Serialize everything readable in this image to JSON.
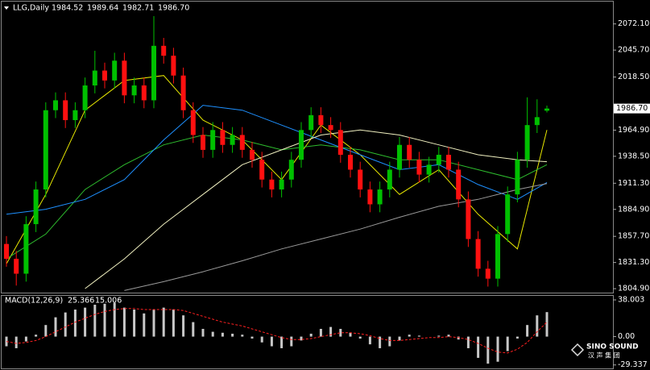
{
  "chart_data": [
    {
      "type": "candlestick",
      "symbol": "LLG,Daily",
      "ohlc_labels": [
        "1984.52",
        "1989.64",
        "1982.71",
        "1986.70"
      ],
      "open": [
        1850,
        1835,
        1820,
        1870,
        1905,
        1985,
        1995,
        1975,
        1985,
        2010,
        2025,
        2015,
        2035,
        2000,
        2010,
        1995,
        2050,
        2040,
        2020,
        1985,
        1960,
        1945,
        1965,
        1950,
        1960,
        1945,
        1935,
        1915,
        1905,
        1915,
        1935,
        1965,
        1980,
        1970,
        1965,
        1940,
        1925,
        1905,
        1890,
        1905,
        1925,
        1950,
        1935,
        1920,
        1930,
        1940,
        1925,
        1895,
        1855,
        1825,
        1815,
        1860,
        1900,
        1935,
        1970,
        1984.52
      ],
      "high": [
        1858,
        1843,
        1878,
        1913,
        1993,
        2003,
        2003,
        1993,
        2018,
        2045,
        2033,
        2043,
        2043,
        2018,
        2018,
        2080,
        2058,
        2048,
        2028,
        1993,
        1968,
        1973,
        1973,
        1968,
        1968,
        1953,
        1943,
        1923,
        1923,
        1943,
        1973,
        1988,
        1988,
        1978,
        1973,
        1948,
        1933,
        1913,
        1913,
        1933,
        1958,
        1958,
        1943,
        1938,
        1948,
        1948,
        1933,
        1903,
        1863,
        1833,
        1868,
        1908,
        1943,
        1998,
        1996,
        1989.64
      ],
      "low": [
        1827,
        1808,
        1812,
        1862,
        1897,
        1977,
        1967,
        1967,
        1977,
        2002,
        2007,
        2007,
        1992,
        1992,
        1987,
        1987,
        2032,
        2012,
        1977,
        1952,
        1937,
        1937,
        1942,
        1942,
        1937,
        1927,
        1907,
        1897,
        1897,
        1907,
        1927,
        1957,
        1962,
        1957,
        1932,
        1917,
        1897,
        1882,
        1882,
        1897,
        1917,
        1927,
        1912,
        1912,
        1922,
        1917,
        1887,
        1847,
        1817,
        1807,
        1807,
        1852,
        1892,
        1927,
        1962,
        1982.71
      ],
      "close": [
        1835,
        1820,
        1870,
        1905,
        1985,
        1995,
        1975,
        1985,
        2010,
        2025,
        2015,
        2035,
        2000,
        2010,
        1995,
        2050,
        2040,
        2020,
        1985,
        1960,
        1945,
        1965,
        1950,
        1960,
        1945,
        1935,
        1915,
        1905,
        1915,
        1935,
        1965,
        1980,
        1970,
        1965,
        1940,
        1925,
        1905,
        1890,
        1905,
        1925,
        1950,
        1935,
        1920,
        1930,
        1940,
        1925,
        1895,
        1855,
        1825,
        1815,
        1860,
        1900,
        1935,
        1970,
        1978,
        1986.7
      ],
      "up_color": "#00c000",
      "down_color": "#ff1010",
      "series": [
        {
          "color": "#e8e800",
          "x": [
            0,
            4,
            8,
            12,
            16,
            20,
            24,
            28,
            32,
            36,
            40,
            44,
            48,
            52,
            55
          ],
          "values": [
            1830,
            1900,
            1985,
            2015,
            2020,
            1975,
            1955,
            1915,
            1970,
            1940,
            1900,
            1925,
            1880,
            1845,
            1965
          ]
        },
        {
          "color": "#2ebd2e",
          "x": [
            0,
            4,
            8,
            12,
            16,
            20,
            24,
            28,
            32,
            36,
            40,
            44,
            48,
            52,
            55
          ],
          "values": [
            1835,
            1860,
            1905,
            1930,
            1950,
            1960,
            1955,
            1945,
            1950,
            1945,
            1935,
            1935,
            1925,
            1915,
            1930
          ]
        },
        {
          "color": "#1e90ff",
          "x": [
            0,
            4,
            8,
            12,
            16,
            20,
            24,
            28,
            32,
            36,
            40,
            44,
            48,
            52,
            55
          ],
          "values": [
            1880,
            1885,
            1895,
            1915,
            1955,
            1990,
            1985,
            1970,
            1955,
            1940,
            1925,
            1930,
            1910,
            1895,
            1912
          ]
        },
        {
          "color": "#f0f0c0",
          "x": [
            0,
            4,
            8,
            12,
            16,
            20,
            24,
            28,
            32,
            36,
            40,
            44,
            48,
            52,
            55
          ],
          "values": [
            null,
            null,
            1805,
            1835,
            1870,
            1900,
            1930,
            1945,
            1960,
            1965,
            1960,
            1950,
            1940,
            1935,
            1933
          ]
        },
        {
          "color": "#9a9a9a",
          "x": [
            0,
            4,
            8,
            12,
            16,
            20,
            24,
            28,
            32,
            36,
            40,
            44,
            48,
            52,
            55
          ],
          "values": [
            null,
            null,
            null,
            1803,
            1812,
            1822,
            1833,
            1845,
            1855,
            1865,
            1877,
            1888,
            1895,
            1905,
            1911
          ]
        }
      ],
      "ylim": [
        1800.9,
        2093.8
      ],
      "yticks": [
        {
          "value": 2072.1,
          "label": "2072.10"
        },
        {
          "value": 2045.7,
          "label": "2045.70"
        },
        {
          "value": 2018.5,
          "label": "2018.50"
        },
        {
          "value": 1964.9,
          "label": "1964.90"
        },
        {
          "value": 1938.5,
          "label": "1938.50"
        },
        {
          "value": 1911.3,
          "label": "1911.30"
        },
        {
          "value": 1884.9,
          "label": "1884.90"
        },
        {
          "value": 1857.7,
          "label": "1857.70"
        },
        {
          "value": 1831.3,
          "label": "1831.30"
        },
        {
          "value": 1804.9,
          "label": "1804.90"
        }
      ]
    },
    {
      "type": "macd",
      "title": "MACD(12,26,9)",
      "histogram": [
        -10,
        -12,
        -5,
        2,
        12,
        20,
        25,
        28,
        30,
        33,
        34,
        35,
        30,
        28,
        24,
        28,
        30,
        28,
        22,
        15,
        8,
        5,
        4,
        3,
        2,
        -2,
        -6,
        -10,
        -12,
        -10,
        -4,
        3,
        8,
        10,
        8,
        4,
        -2,
        -8,
        -12,
        -10,
        -4,
        2,
        1,
        0,
        1,
        2,
        -3,
        -12,
        -22,
        -28,
        -26,
        -15,
        -2,
        12,
        22,
        25.366
      ],
      "signal": [
        -5,
        -7,
        -6,
        -4,
        0,
        5,
        10,
        15,
        19,
        23,
        26,
        28,
        29,
        29,
        28,
        28,
        28,
        28,
        27,
        24,
        21,
        18,
        15,
        13,
        11,
        8,
        5,
        2,
        -1,
        -3,
        -3,
        -2,
        0,
        2,
        4,
        4,
        3,
        1,
        -2,
        -4,
        -4,
        -3,
        -2,
        -1,
        -1,
        0,
        -1,
        -3,
        -7,
        -12,
        -16,
        -17,
        -13,
        -6,
        5,
        15.006
      ],
      "histogram_color": "#c8c8c8",
      "signal_color": "#ff2020",
      "ylim": [
        -32.9,
        42.2
      ],
      "yticks": [
        38.003,
        {
          "value": 0,
          "label": "0.00"
        },
        -29.337
      ]
    }
  ],
  "watermark": {
    "brand": "SINO SOUND",
    "chinese": "汉 声 集 团"
  }
}
